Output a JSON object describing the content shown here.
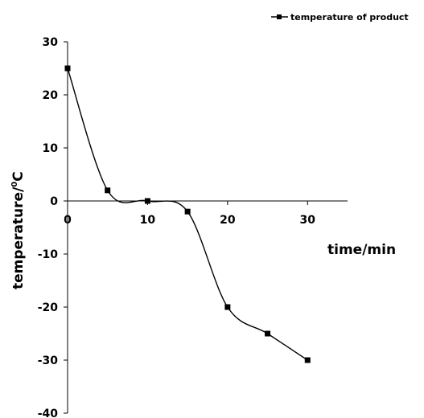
{
  "chart_data": {
    "type": "line",
    "xlabel": "time/min",
    "ylabel_main": "temperature/",
    "ylabel_sup": "0",
    "ylabel_unit": "C",
    "xlim": [
      0,
      35
    ],
    "ylim": [
      -40,
      30
    ],
    "x_ticks": [
      0,
      10,
      20,
      30
    ],
    "y_ticks": [
      30,
      20,
      10,
      0,
      -10,
      -20,
      -30,
      -40
    ],
    "grid": false,
    "legend_position": "top-right",
    "series": [
      {
        "name": "temperature of product",
        "x": [
          0,
          5,
          10,
          15,
          20,
          25,
          30
        ],
        "y": [
          25,
          2,
          0,
          -2,
          -20,
          -25,
          -30
        ]
      }
    ]
  }
}
